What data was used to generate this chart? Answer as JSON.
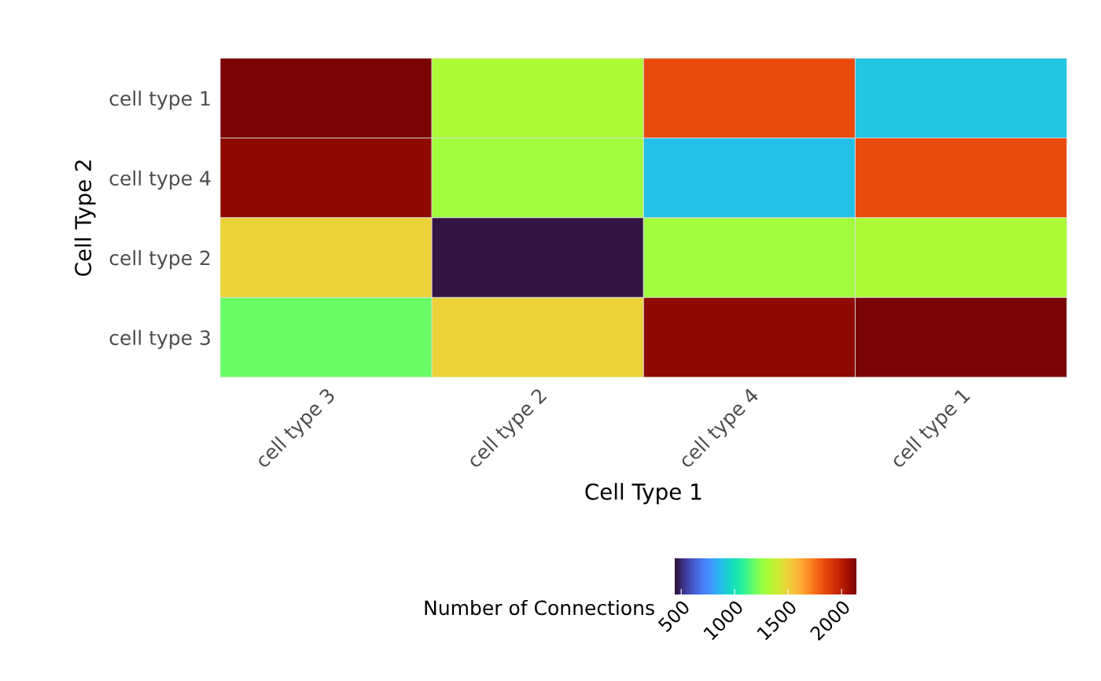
{
  "chart_data": {
    "type": "heatmap",
    "xlabel": "Cell Type 1",
    "ylabel": "Cell Type 2",
    "clabel": "Number of Connections",
    "categories": [
      "cell type 3",
      "cell type 2",
      "cell type 4",
      "cell type 1"
    ],
    "y_categories": [
      "cell type 1",
      "cell type 4",
      "cell type 2",
      "cell type 3"
    ],
    "cells": [
      [
        2140,
        1320,
        1840,
        895
      ],
      [
        2100,
        1290,
        880,
        1840
      ],
      [
        1494,
        450,
        1290,
        1320
      ],
      [
        1180,
        1494,
        2100,
        2140
      ]
    ],
    "clim": [
      441,
      2140
    ],
    "cticks": [
      500,
      1000,
      1500,
      2000
    ]
  }
}
